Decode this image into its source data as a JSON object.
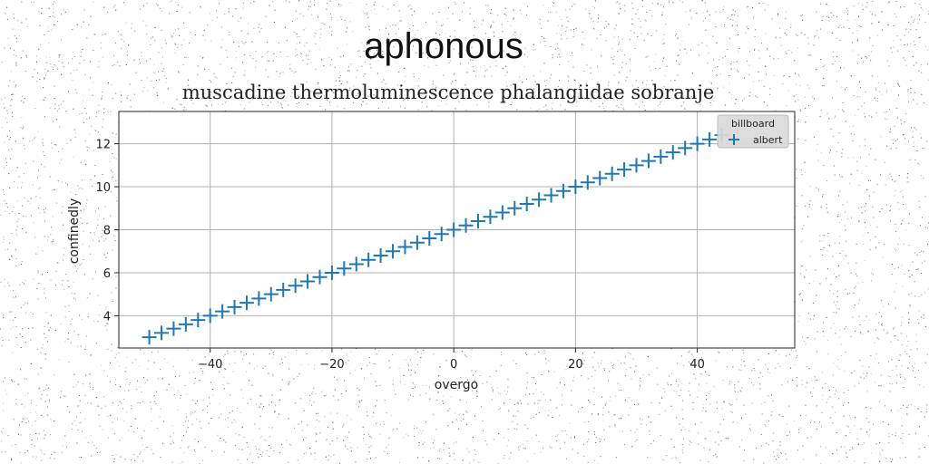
{
  "figure": {
    "title": "aphonous"
  },
  "chart_data": {
    "type": "scatter",
    "title": "muscadine thermoluminescence phalangiidae sobranje",
    "xlabel": "overgo",
    "ylabel": "confinedly",
    "xlim": [
      -55,
      56
    ],
    "ylim": [
      2.5,
      13.5
    ],
    "xticks": [
      -40,
      -20,
      0,
      20,
      40
    ],
    "yticks": [
      4,
      6,
      8,
      10,
      12
    ],
    "xtick_labels": [
      "−40",
      "−20",
      "0",
      "20",
      "40"
    ],
    "ytick_labels": [
      "4",
      "6",
      "8",
      "10",
      "12"
    ],
    "grid": true,
    "legend": {
      "title": "billboard",
      "placement": "top-right"
    },
    "series": [
      {
        "name": "albert",
        "marker": "+",
        "color": "#1f77b4",
        "x": [
          -50,
          -48,
          -46,
          -44,
          -42,
          -40,
          -38,
          -36,
          -34,
          -32,
          -30,
          -28,
          -26,
          -24,
          -22,
          -20,
          -18,
          -16,
          -14,
          -12,
          -10,
          -8,
          -6,
          -4,
          -2,
          0,
          2,
          4,
          6,
          8,
          10,
          12,
          14,
          16,
          18,
          20,
          22,
          24,
          26,
          28,
          30,
          32,
          34,
          36,
          38,
          40,
          42,
          44
        ],
        "y": [
          3.0,
          3.2,
          3.4,
          3.6,
          3.8,
          4.0,
          4.2,
          4.4,
          4.6,
          4.8,
          5.0,
          5.2,
          5.4,
          5.6,
          5.8,
          6.0,
          6.2,
          6.4,
          6.6,
          6.8,
          7.0,
          7.2,
          7.4,
          7.6,
          7.8,
          8.0,
          8.2,
          8.4,
          8.6,
          8.8,
          9.0,
          9.2,
          9.4,
          9.6,
          9.8,
          10.0,
          10.2,
          10.4,
          10.6,
          10.8,
          11.0,
          11.2,
          11.4,
          11.6,
          11.8,
          12.0,
          12.2,
          12.4
        ]
      }
    ]
  }
}
